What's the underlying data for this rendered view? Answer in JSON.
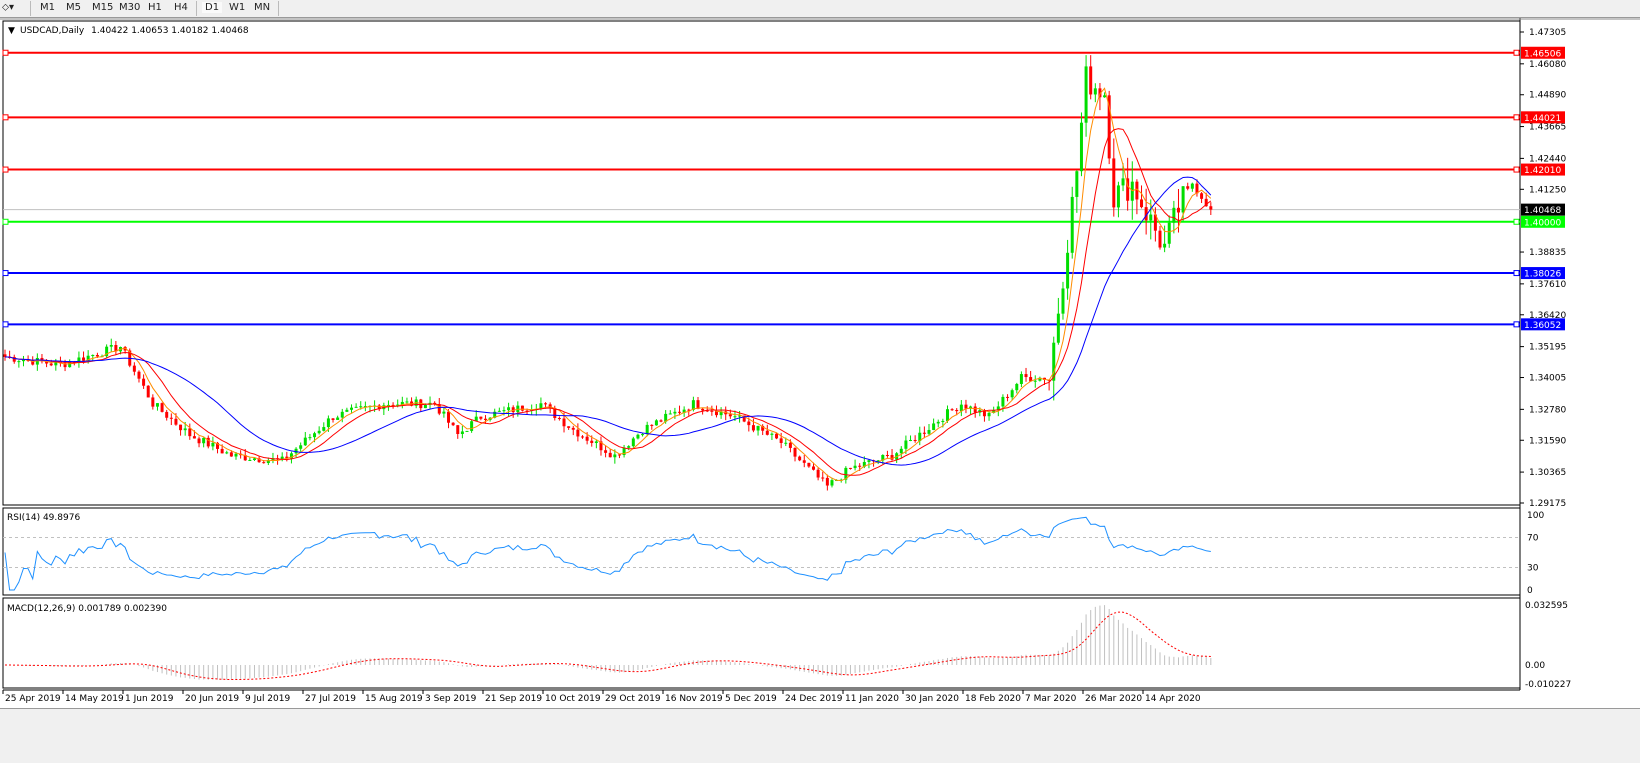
{
  "toolbar": {
    "timeframes": [
      "M1",
      "M5",
      "M15",
      "M30",
      "H1",
      "H4",
      "D1",
      "W1",
      "MN"
    ],
    "active": "D1"
  },
  "chart_header": {
    "symbol": "USDCAD,Daily",
    "ohlc": "1.40422 1.40653 1.40182 1.40468"
  },
  "price_axis": {
    "ticks": [
      "1.47305",
      "1.46080",
      "1.44890",
      "1.43665",
      "1.42440",
      "1.41250",
      "1.38835",
      "1.37610",
      "1.36420",
      "1.35195",
      "1.34005",
      "1.32780",
      "1.31590",
      "1.30365",
      "1.29175"
    ],
    "range": [
      1.29175,
      1.47305
    ]
  },
  "levels": [
    {
      "price": "1.46506",
      "color": "#ff0000"
    },
    {
      "price": "1.44021",
      "color": "#ff0000"
    },
    {
      "price": "1.42010",
      "color": "#ff0000"
    },
    {
      "price": "1.40000",
      "color": "#00ff00"
    },
    {
      "price": "1.38026",
      "color": "#0000ff"
    },
    {
      "price": "1.36052",
      "color": "#0000ff"
    }
  ],
  "current_price": {
    "price": "1.40468",
    "color": "#000000"
  },
  "rsi": {
    "label": "RSI(14) 49.8976",
    "ticks": [
      "100",
      "70",
      "30",
      "0"
    ]
  },
  "macd": {
    "label": "MACD(12,26,9) 0.001789 0.002390",
    "ticks": [
      "0.032595",
      "0.00",
      "-0.010227"
    ]
  },
  "date_axis": [
    "25 Apr 2019",
    "14 May 2019",
    "1 Jun 2019",
    "20 Jun 2019",
    "9 Jul 2019",
    "27 Jul 2019",
    "15 Aug 2019",
    "3 Sep 2019",
    "21 Sep 2019",
    "10 Oct 2019",
    "29 Oct 2019",
    "16 Nov 2019",
    "5 Dec 2019",
    "24 Dec 2019",
    "11 Jan 2020",
    "30 Jan 2020",
    "18 Feb 2020",
    "7 Mar 2020",
    "26 Mar 2020",
    "14 Apr 2020"
  ],
  "chart_data": {
    "type": "candlestick",
    "symbol": "USDCAD",
    "timeframe": "Daily",
    "colors": {
      "up": "#00dd00",
      "down": "#ff0000",
      "ma_fast": "#ff8c00",
      "ma_mid": "#ff0000",
      "ma_slow": "#0000ff",
      "rsi": "#1e90ff",
      "macd_hist": "#c0c0c0",
      "macd_signal": "#ff0000"
    },
    "approx_close_path": [
      [
        0,
        1.348
      ],
      [
        12,
        1.345
      ],
      [
        25,
        1.352
      ],
      [
        32,
        1.33
      ],
      [
        40,
        1.318
      ],
      [
        49,
        1.31
      ],
      [
        60,
        1.308
      ],
      [
        71,
        1.325
      ],
      [
        82,
        1.33
      ],
      [
        93,
        1.33
      ],
      [
        98,
        1.318
      ],
      [
        103,
        1.325
      ],
      [
        116,
        1.33
      ],
      [
        123,
        1.32
      ],
      [
        132,
        1.31
      ],
      [
        138,
        1.32
      ],
      [
        149,
        1.33
      ],
      [
        158,
        1.325
      ],
      [
        168,
        1.315
      ],
      [
        178,
        1.298
      ],
      [
        183,
        1.305
      ],
      [
        192,
        1.31
      ],
      [
        203,
        1.325
      ],
      [
        207,
        1.33
      ],
      [
        213,
        1.325
      ],
      [
        220,
        1.34
      ],
      [
        226,
        1.34
      ],
      [
        229,
        1.38
      ],
      [
        232,
        1.42
      ],
      [
        234,
        1.455
      ],
      [
        238,
        1.45
      ],
      [
        240,
        1.41
      ],
      [
        244,
        1.415
      ],
      [
        248,
        1.4
      ],
      [
        251,
        1.39
      ],
      [
        254,
        1.405
      ],
      [
        257,
        1.415
      ],
      [
        261,
        1.40468
      ]
    ]
  }
}
